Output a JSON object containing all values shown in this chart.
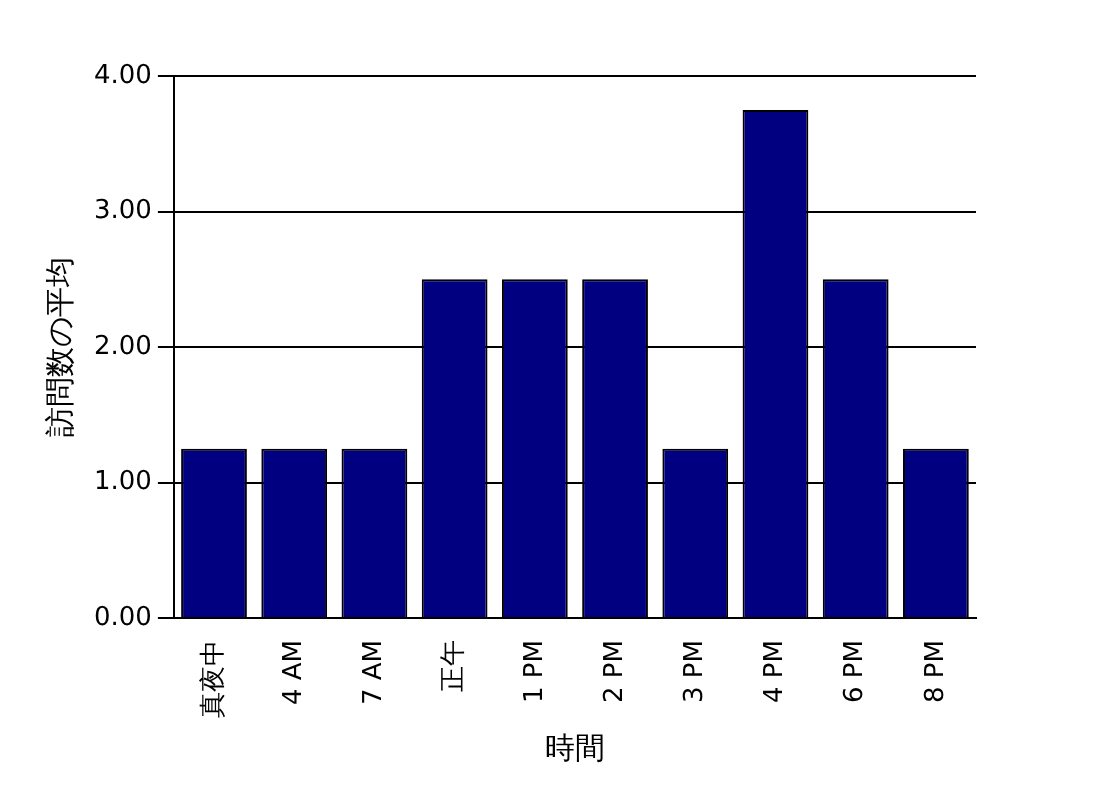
{
  "chart_data": {
    "type": "bar",
    "xlabel": "時間",
    "ylabel": "訪問数の平均",
    "categories": [
      "真夜中",
      "4 AM",
      "7 AM",
      "正午",
      "1 PM",
      "2 PM",
      "3 PM",
      "4 PM",
      "6 PM",
      "8 PM"
    ],
    "values": [
      1.25,
      1.25,
      1.25,
      2.5,
      2.5,
      2.5,
      1.25,
      3.75,
      2.5,
      1.25
    ],
    "color": "#000080",
    "ylim": [
      0,
      4
    ],
    "yticks": [
      {
        "value": 0,
        "label": "0.00"
      },
      {
        "value": 1,
        "label": "1.00"
      },
      {
        "value": 2,
        "label": "2.00"
      },
      {
        "value": 3,
        "label": "3.00"
      },
      {
        "value": 4,
        "label": "4.00"
      }
    ],
    "grid": "y"
  }
}
